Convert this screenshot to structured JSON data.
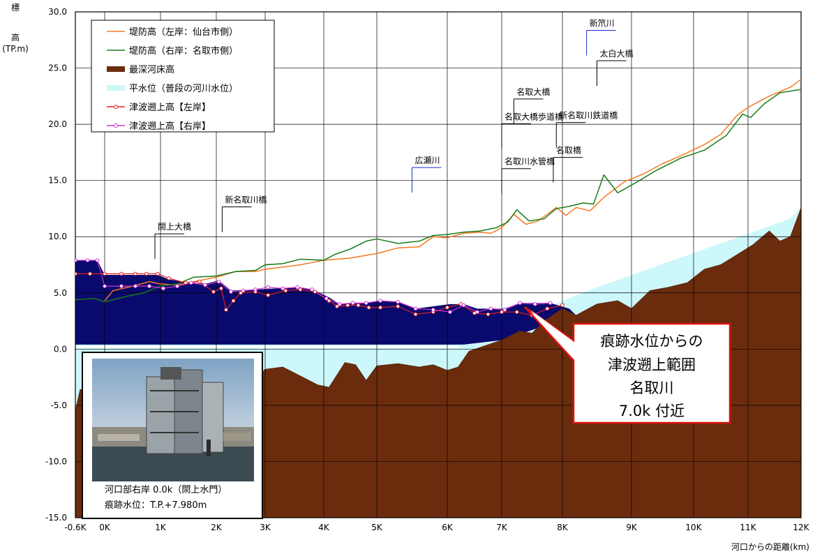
{
  "chart_data": {
    "type": "area",
    "ylabel_chars": [
      "標",
      "高"
    ],
    "yunit": "(TP.m)",
    "xlabel": "河口からの距離(km)",
    "ylim": [
      -15,
      30
    ],
    "y_ticks": [
      "30.0",
      "25.0",
      "20.0",
      "15.0",
      "10.0",
      "5.0",
      "0.0",
      "-5.0",
      "-10.0",
      "-15.0"
    ],
    "x_ticks": [
      {
        "label": "-0.6K",
        "x": -0.6
      },
      {
        "label": "0K",
        "x": 0
      },
      {
        "label": "1K",
        "x": 1
      },
      {
        "label": "2K",
        "x": 2
      },
      {
        "label": "3K",
        "x": 3
      },
      {
        "label": "4K",
        "x": 4
      },
      {
        "label": "5K",
        "x": 5
      },
      {
        "label": "6K",
        "x": 6
      },
      {
        "label": "7K",
        "x": 7
      },
      {
        "label": "8K",
        "x": 8
      },
      {
        "label": "9K",
        "x": 9
      },
      {
        "label": "10K",
        "x": 10
      },
      {
        "label": "11K",
        "x": 11
      },
      {
        "label": "12K",
        "x": 12
      }
    ],
    "legend": [
      {
        "name": "堤防高（左岸：仙台市側）",
        "color": "#f47920",
        "marker": false
      },
      {
        "name": "堤防高（右岸：名取市側）",
        "color": "#1a7a1a",
        "marker": false
      },
      {
        "name": "最深河床高",
        "color": "#6b2c0e",
        "marker": false
      },
      {
        "name": "平水位（普段の河川水位）",
        "color": "#ccf7fb",
        "marker": false
      },
      {
        "name": "津波遡上高【左岸】",
        "color": "#e02020",
        "marker": true
      },
      {
        "name": "津波遡上高【右岸】",
        "color": "#d030d0",
        "marker": true
      }
    ],
    "series": {
      "levee_left": [
        [
          0,
          4.3
        ],
        [
          0.15,
          5.2
        ],
        [
          0.5,
          5.6
        ],
        [
          0.8,
          6.0
        ],
        [
          1.0,
          5.8
        ],
        [
          1.3,
          5.7
        ],
        [
          1.6,
          6.0
        ],
        [
          2.0,
          6.4
        ],
        [
          2.4,
          6.9
        ],
        [
          2.8,
          6.9
        ],
        [
          3.0,
          7.1
        ],
        [
          3.3,
          7.3
        ],
        [
          3.6,
          7.5
        ],
        [
          4.0,
          7.9
        ],
        [
          4.5,
          8.1
        ],
        [
          5.0,
          8.5
        ],
        [
          5.3,
          9.0
        ],
        [
          5.6,
          9.1
        ],
        [
          5.8,
          10.0
        ],
        [
          6.0,
          9.9
        ],
        [
          6.3,
          10.3
        ],
        [
          6.6,
          10.4
        ],
        [
          6.8,
          10.3
        ],
        [
          7.0,
          10.8
        ],
        [
          7.2,
          12.0
        ],
        [
          7.4,
          11.1
        ],
        [
          7.6,
          11.4
        ],
        [
          7.9,
          12.6
        ],
        [
          8.05,
          11.9
        ],
        [
          8.2,
          12.6
        ],
        [
          8.4,
          12.3
        ],
        [
          8.6,
          13.5
        ],
        [
          8.9,
          14.9
        ],
        [
          9.2,
          15.6
        ],
        [
          9.5,
          16.5
        ],
        [
          9.8,
          17.2
        ],
        [
          10.2,
          18.2
        ],
        [
          10.5,
          19.1
        ],
        [
          10.8,
          20.8
        ],
        [
          11.0,
          21.5
        ],
        [
          11.4,
          22.5
        ],
        [
          11.8,
          23.3
        ],
        [
          12.0,
          24.0
        ]
      ],
      "levee_right": [
        [
          -0.6,
          4.4
        ],
        [
          -0.2,
          4.5
        ],
        [
          0,
          4.2
        ],
        [
          0.4,
          4.7
        ],
        [
          0.7,
          5.0
        ],
        [
          1.0,
          5.6
        ],
        [
          1.3,
          5.8
        ],
        [
          1.6,
          6.4
        ],
        [
          2.0,
          6.5
        ],
        [
          2.4,
          6.9
        ],
        [
          2.8,
          7.0
        ],
        [
          3.0,
          7.5
        ],
        [
          3.3,
          7.6
        ],
        [
          3.6,
          8.0
        ],
        [
          4.0,
          7.9
        ],
        [
          4.2,
          8.4
        ],
        [
          4.5,
          8.9
        ],
        [
          4.8,
          9.6
        ],
        [
          5.0,
          9.8
        ],
        [
          5.3,
          9.4
        ],
        [
          5.6,
          9.6
        ],
        [
          5.8,
          10.1
        ],
        [
          6.0,
          10.2
        ],
        [
          6.3,
          10.4
        ],
        [
          6.6,
          10.5
        ],
        [
          6.9,
          10.8
        ],
        [
          7.1,
          11.3
        ],
        [
          7.25,
          12.4
        ],
        [
          7.45,
          11.4
        ],
        [
          7.7,
          11.6
        ],
        [
          7.9,
          12.5
        ],
        [
          8.1,
          12.7
        ],
        [
          8.3,
          13.0
        ],
        [
          8.45,
          12.9
        ],
        [
          8.6,
          15.5
        ],
        [
          8.8,
          13.9
        ],
        [
          9.1,
          14.9
        ],
        [
          9.4,
          15.9
        ],
        [
          9.8,
          17.0
        ],
        [
          10.2,
          17.7
        ],
        [
          10.6,
          19.0
        ],
        [
          10.9,
          20.9
        ],
        [
          11.05,
          20.6
        ],
        [
          11.3,
          21.8
        ],
        [
          11.6,
          22.8
        ],
        [
          12.0,
          23.1
        ],
        [
          12.3,
          24.5
        ]
      ],
      "riverbed": [
        [
          -0.6,
          -5.5
        ],
        [
          -0.5,
          -3.6
        ],
        [
          0,
          -3.8
        ],
        [
          0.5,
          -3.9
        ],
        [
          1.0,
          -3.6
        ],
        [
          1.3,
          -3.6
        ],
        [
          1.6,
          -3.8
        ],
        [
          2.0,
          -3.5
        ],
        [
          2.4,
          -3.0
        ],
        [
          2.8,
          -2.7
        ],
        [
          3.0,
          -1.8
        ],
        [
          3.3,
          -1.6
        ],
        [
          3.6,
          -2.4
        ],
        [
          3.9,
          -3.2
        ],
        [
          4.1,
          -3.4
        ],
        [
          4.4,
          -1.2
        ],
        [
          4.6,
          -1.4
        ],
        [
          4.8,
          -2.8
        ],
        [
          5.0,
          -1.5
        ],
        [
          5.3,
          -1.3
        ],
        [
          5.6,
          -1.6
        ],
        [
          5.8,
          -1.4
        ],
        [
          6.0,
          -1.9
        ],
        [
          6.2,
          -1.6
        ],
        [
          6.4,
          -0.2
        ],
        [
          6.7,
          0.3
        ],
        [
          7.0,
          0.8
        ],
        [
          7.3,
          1.6
        ],
        [
          7.5,
          1.4
        ],
        [
          7.7,
          2.5
        ],
        [
          8.0,
          3.6
        ],
        [
          8.2,
          3.0
        ],
        [
          8.5,
          4.0
        ],
        [
          8.8,
          4.3
        ],
        [
          9.0,
          3.6
        ],
        [
          9.3,
          5.2
        ],
        [
          9.6,
          5.5
        ],
        [
          9.9,
          5.9
        ],
        [
          10.2,
          7.1
        ],
        [
          10.5,
          7.5
        ],
        [
          10.8,
          8.4
        ],
        [
          11.1,
          9.3
        ],
        [
          11.4,
          10.5
        ],
        [
          11.6,
          9.6
        ],
        [
          11.8,
          10.0
        ],
        [
          12.1,
          13.7
        ],
        [
          12.3,
          13.4
        ],
        [
          12.6,
          14.4
        ],
        [
          12.9,
          16.0
        ],
        [
          13.2,
          18.5
        ]
      ],
      "normal_water_lower": [
        [
          -0.6,
          0.0
        ],
        [
          0,
          0.0
        ],
        [
          5,
          0.0
        ],
        [
          6.2,
          0.2
        ],
        [
          8.5,
          3.0
        ],
        [
          11.5,
          11.5
        ],
        [
          13.2,
          18.5
        ]
      ],
      "normal_water_upper": [
        [
          -0.6,
          0.4
        ],
        [
          0,
          0.4
        ],
        [
          5.5,
          0.5
        ],
        [
          6.2,
          0.6
        ],
        [
          8.5,
          5.5
        ],
        [
          11.8,
          11.6
        ],
        [
          13.2,
          18.6
        ]
      ],
      "tsunami_left": [
        [
          -0.6,
          6.7
        ],
        [
          -0.3,
          6.7
        ],
        [
          0,
          6.7
        ],
        [
          0.3,
          6.7
        ],
        [
          0.55,
          6.7
        ],
        [
          0.75,
          6.7
        ],
        [
          0.95,
          6.7
        ],
        [
          1.15,
          6.3
        ],
        [
          1.45,
          5.9
        ],
        [
          1.7,
          6.0
        ],
        [
          1.95,
          5.1
        ],
        [
          2.1,
          5.4
        ],
        [
          2.2,
          3.5
        ],
        [
          2.35,
          4.3
        ],
        [
          2.5,
          5.0
        ],
        [
          2.8,
          5.1
        ],
        [
          3.05,
          4.8
        ],
        [
          3.35,
          5.2
        ],
        [
          3.6,
          5.3
        ],
        [
          3.85,
          5.1
        ],
        [
          4.1,
          4.3
        ],
        [
          4.25,
          3.8
        ],
        [
          4.45,
          3.9
        ],
        [
          4.65,
          3.9
        ],
        [
          4.85,
          3.7
        ],
        [
          5.05,
          3.7
        ],
        [
          5.3,
          3.8
        ],
        [
          5.55,
          3.1
        ],
        [
          5.8,
          3.3
        ],
        [
          6.0,
          3.7
        ],
        [
          6.25,
          4.0
        ],
        [
          6.5,
          3.2
        ],
        [
          6.75,
          3.1
        ],
        [
          7.0,
          3.3
        ],
        [
          7.25,
          3.3
        ],
        [
          7.5,
          3.0
        ],
        [
          7.75,
          3.6
        ],
        [
          8.0,
          3.9
        ]
      ],
      "tsunami_right": [
        [
          -0.6,
          7.9
        ],
        [
          -0.35,
          7.9
        ],
        [
          -0.15,
          7.9
        ],
        [
          0,
          5.6
        ],
        [
          0.3,
          5.6
        ],
        [
          0.55,
          5.6
        ],
        [
          0.8,
          5.6
        ],
        [
          1.05,
          5.4
        ],
        [
          1.3,
          5.6
        ],
        [
          1.55,
          5.9
        ],
        [
          1.8,
          5.7
        ],
        [
          2.05,
          6.0
        ],
        [
          2.3,
          5.1
        ],
        [
          2.55,
          5.2
        ],
        [
          2.8,
          5.3
        ],
        [
          3.05,
          5.5
        ],
        [
          3.3,
          5.4
        ],
        [
          3.55,
          5.5
        ],
        [
          3.8,
          5.3
        ],
        [
          4.05,
          4.5
        ],
        [
          4.3,
          4.0
        ],
        [
          4.55,
          4.1
        ],
        [
          4.8,
          4.1
        ],
        [
          5.05,
          4.3
        ],
        [
          5.3,
          4.2
        ],
        [
          5.55,
          3.6
        ],
        [
          5.8,
          3.5
        ],
        [
          6.05,
          3.3
        ],
        [
          6.3,
          3.9
        ],
        [
          6.55,
          3.3
        ],
        [
          6.8,
          3.6
        ],
        [
          7.05,
          3.5
        ],
        [
          7.3,
          4.1
        ],
        [
          7.55,
          4.0
        ],
        [
          7.8,
          4.1
        ]
      ],
      "tsunami_fill": [
        [
          -0.6,
          7.9
        ],
        [
          -0.15,
          7.9
        ],
        [
          0,
          6.6
        ],
        [
          0.95,
          6.6
        ],
        [
          1.15,
          6.2
        ],
        [
          1.55,
          5.9
        ],
        [
          1.8,
          5.8
        ],
        [
          2.05,
          6.1
        ],
        [
          2.3,
          5.2
        ],
        [
          2.8,
          5.3
        ],
        [
          3.55,
          5.5
        ],
        [
          3.85,
          5.2
        ],
        [
          4.1,
          4.6
        ],
        [
          4.3,
          4.0
        ],
        [
          4.8,
          4.1
        ],
        [
          5.05,
          4.3
        ],
        [
          5.3,
          4.2
        ],
        [
          5.55,
          3.6
        ],
        [
          6.05,
          4.0
        ],
        [
          6.3,
          4.0
        ],
        [
          6.55,
          3.6
        ],
        [
          6.8,
          3.6
        ],
        [
          7.05,
          3.6
        ],
        [
          7.3,
          4.1
        ],
        [
          7.8,
          4.1
        ],
        [
          8.1,
          3.6
        ],
        [
          8.2,
          3.0
        ],
        [
          7.0,
          0.8
        ],
        [
          6.3,
          0.4
        ],
        [
          -0.6,
          0.4
        ]
      ]
    },
    "annotations": [
      {
        "text": "閖上大橋",
        "x": 0.9,
        "y": 10.5
      },
      {
        "text": "新名取川橋",
        "x": 2.12,
        "y": 12.9
      },
      {
        "text": "広瀬川",
        "x": 5.5,
        "y": 16.4
      },
      {
        "text": "名取川水管橋",
        "x": 7.0,
        "y": 16.3
      },
      {
        "text": "名取大橋歩道橋",
        "x": 7.0,
        "y": 20.3
      },
      {
        "text": "名取大橋",
        "x": 7.2,
        "y": 22.5
      },
      {
        "text": "名取橋",
        "x": 7.85,
        "y": 17.3
      },
      {
        "text": "新名取川鉄道橋",
        "x": 7.9,
        "y": 20.4
      },
      {
        "text": "太白大橋",
        "x": 8.5,
        "y": 25.9
      },
      {
        "text": "新笊川",
        "x": 8.35,
        "y": 28.6
      }
    ],
    "callout": {
      "lines": [
        "痕跡水位からの",
        "津波遡上範囲",
        "名取川",
        "7.0k 付近"
      ]
    },
    "photo": {
      "caption_line1": "河口部右岸  0.0k（閖上水門）",
      "caption_line2": "痕跡水位：T.P.+7.980m"
    }
  }
}
